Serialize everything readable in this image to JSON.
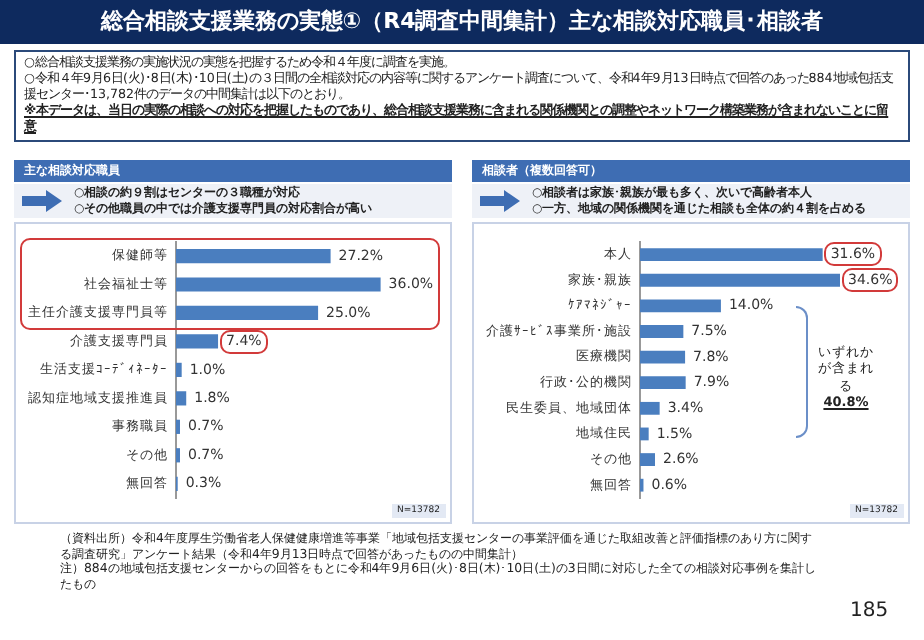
{
  "chart_data": [
    {
      "type": "bar",
      "orientation": "horizontal",
      "title": "主な相談対応職員",
      "categories": [
        "保健師等",
        "社会福祉士等",
        "主任介護支援専門員等",
        "介護支援専門員",
        "生活支援ｺｰﾃﾞｨﾈｰﾀｰ",
        "認知症地域支援推進員",
        "事務職員",
        "その他",
        "無回答"
      ],
      "values": [
        27.2,
        36.0,
        25.0,
        7.4,
        1.0,
        1.8,
        0.7,
        0.7,
        0.3
      ],
      "value_labels": [
        "27.2%",
        "36.0%",
        "25.0%",
        "7.4%",
        "1.0%",
        "1.8%",
        "0.7%",
        "0.7%",
        "0.3%"
      ],
      "color": "#4a7ebf",
      "legend": false,
      "tick_labels": "y",
      "annotations": [
        "総合相談支援業務の実態①（R4調査中間集計）主な相談対応職員･相談者",
        "○総合相談支援業務の実施状況の実態を把握するため令和４年度に調査を実施。",
        "○令和４年9月6日(火)･8日(木)･10日(土)の３日間の全相談対応の内容等に関するアンケート調査について、令和4年9月13日時点で回答のあった884地域包括支援センター･13,782件のデータの中間集計は以下のとおり。",
        "※本データは、当日の実際の相談への対応を把握したものであり、総合相談支援業務に含まれる関係機関との調整やネットワーク構築業務が含まれないことに留意",
        "○相談の約９割はセンターの３職種が対応",
        "○その他職員の中では介護支援専門員の対応割合が高い",
        "N=13782",
        "（資料出所）令和4年度厚生労働省老人保健健康増進等事業「地域包括支援センターの事業評価を通じた取組改善と評価指標のあり方に関する調査研究」アンケート結果（令和4年9月13日時点で回答があったものの中間集計）",
        "注）884の地域包括支援センターからの回答をもとに令和4年9月6日(火)･8日(木)･10日(土)の3日間に対応した全ての相談対応事例を集計したもの",
        "185"
      ]
    },
    {
      "type": "bar",
      "orientation": "horizontal",
      "title": "相談者（複数回答可）",
      "categories": [
        "本人",
        "家族･親族",
        "ｹｱﾏﾈｼﾞｬｰ",
        "介護ｻｰﾋﾞｽ事業所･施設",
        "医療機関",
        "行政･公的機関",
        "民生委員、地域団体",
        "地域住民",
        "その他",
        "無回答"
      ],
      "values": [
        31.6,
        34.6,
        14.0,
        7.5,
        7.8,
        7.9,
        3.4,
        1.5,
        2.6,
        0.6
      ],
      "value_labels": [
        "31.6%",
        "34.6%",
        "14.0%",
        "7.5%",
        "7.8%",
        "7.9%",
        "3.4%",
        "1.5%",
        "2.6%",
        "0.6%"
      ],
      "color": "#4a7ebf",
      "legend": false,
      "tick_labels": "y",
      "annotations": [
        "○相談者は家族･親族が最も多く、次いで高齢者本人",
        "○一方、地域の関係機関を通じた相談も全体の約４割を占める",
        "いずれかが含まれる",
        "40.8%",
        "N=13782"
      ]
    }
  ]
}
